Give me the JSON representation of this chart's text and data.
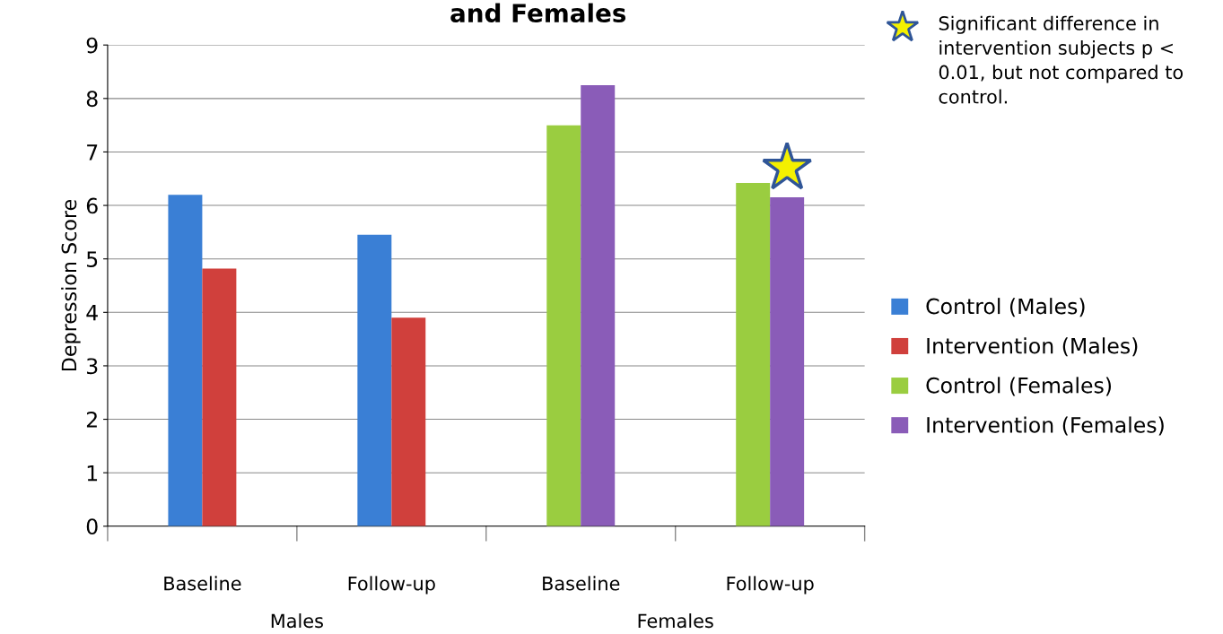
{
  "chart_data": {
    "type": "bar",
    "title": "and Females",
    "ylabel": "Depression Score",
    "categories": [
      "Baseline",
      "Follow-up",
      "Baseline",
      "Follow-up"
    ],
    "series": [
      {
        "name": "Control (Males)",
        "color": "#3a7fd5",
        "values": [
          6.2,
          5.45,
          null,
          null
        ]
      },
      {
        "name": "Intervention (Males)",
        "color": "#d0403c",
        "values": [
          4.82,
          3.9,
          null,
          null
        ]
      },
      {
        "name": "Control (Females)",
        "color": "#9acd40",
        "values": [
          null,
          null,
          7.5,
          6.42
        ]
      },
      {
        "name": "Intervention (Females)",
        "color": "#8a5cb8",
        "values": [
          null,
          null,
          8.25,
          6.15
        ]
      }
    ],
    "ylim": [
      0,
      9
    ],
    "yticks": [
      0,
      1,
      2,
      3,
      4,
      5,
      6,
      7,
      8,
      9
    ],
    "grid": "y",
    "legend": "right",
    "annotations": [
      "Males",
      "Females",
      "Significant difference in intervention subjects p < 0.01, but not compared to control."
    ]
  }
}
